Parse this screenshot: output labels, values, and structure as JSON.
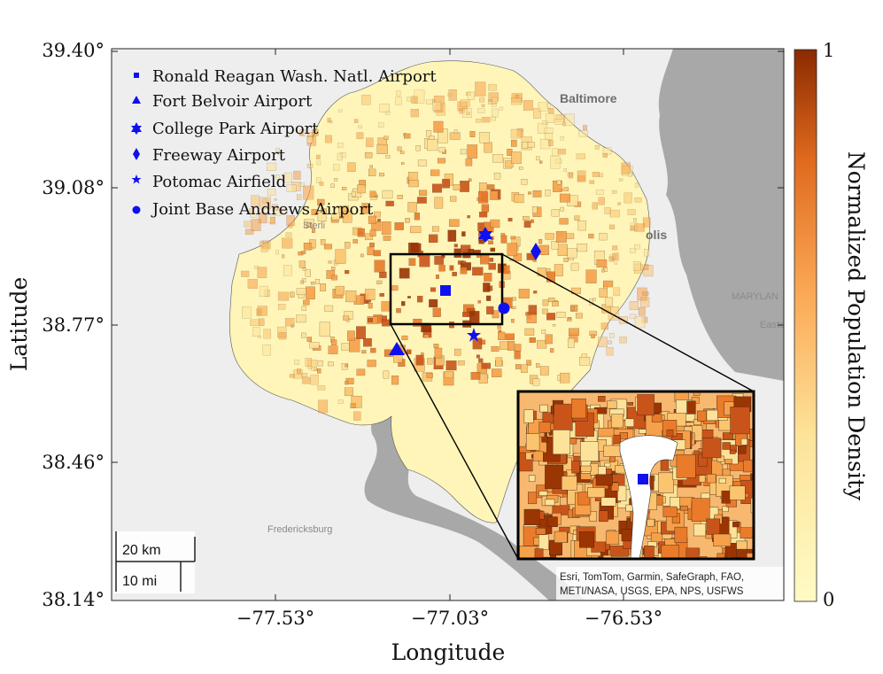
{
  "axes": {
    "xlabel": "Longitude",
    "ylabel": "Latitude",
    "x_ticks": [
      "−77.53°",
      "−77.03°",
      "−76.53°"
    ],
    "y_ticks": [
      "39.40°",
      "39.08°",
      "38.77°",
      "38.46°",
      "38.14°"
    ]
  },
  "colorbar": {
    "label": "Normalized Population Density",
    "max_label": "1",
    "min_label": "0",
    "color_low": "#fffbc4",
    "color_high": "#8a2a00"
  },
  "legend": [
    {
      "marker": "square",
      "label": "Ronald Reagan Wash. Natl. Airport"
    },
    {
      "marker": "triangle",
      "label": "Fort Belvoir Airport"
    },
    {
      "marker": "hexagram",
      "label": "College Park Airport"
    },
    {
      "marker": "diamond",
      "label": "Freeway Airport"
    },
    {
      "marker": "pentagram",
      "label": "Potomac Airfield"
    },
    {
      "marker": "circle",
      "label": "Joint Base Andrews Airport"
    }
  ],
  "basemap": {
    "labels": [
      "Baltimore",
      "Sterli",
      "olis",
      "MARYLAN",
      "Easto",
      "Fredericksburg"
    ],
    "attribution_line1": "Esri, TomTom, Garmin, SafeGraph, FAO,",
    "attribution_line2": "METI/NASA, USGS, EPA, NPS, USFWS"
  },
  "scalebar": {
    "km_label": "20 km",
    "mi_label": "10 mi"
  },
  "colors": {
    "marker": "#1010ee",
    "water": "#a9a9a9",
    "land": "#efefef",
    "region": "#fff5b8"
  }
}
